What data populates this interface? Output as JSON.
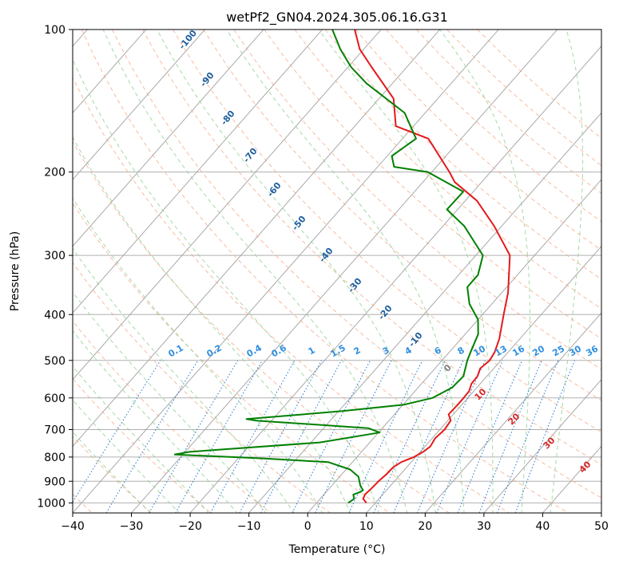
{
  "chart_data": {
    "type": "line",
    "title": "wetPf2_GN04.2024.305.06.16.G31",
    "xlabel": "Temperature (°C)",
    "ylabel": "Pressure (hPa)",
    "xlim": [
      -40,
      50
    ],
    "ylim": [
      1050,
      100
    ],
    "y_scale": "log",
    "skew": "skew-T",
    "grid": true,
    "x_ticks": [
      -40,
      -30,
      -20,
      -10,
      0,
      10,
      20,
      30,
      40,
      50
    ],
    "y_ticks": [
      1000,
      900,
      800,
      700,
      600,
      500,
      400,
      300,
      200,
      100
    ],
    "series": [
      {
        "color": "#e41a1c",
        "points": [
          {
            "t": 8.5,
            "p": 1000
          },
          {
            "t": 7.3,
            "p": 980
          },
          {
            "t": 7.0,
            "p": 960
          },
          {
            "t": 7.2,
            "p": 930
          },
          {
            "t": 7.3,
            "p": 900
          },
          {
            "t": 7.6,
            "p": 870
          },
          {
            "t": 7.7,
            "p": 840
          },
          {
            "t": 8.3,
            "p": 820
          },
          {
            "t": 9.7,
            "p": 800
          },
          {
            "t": 10.5,
            "p": 780
          },
          {
            "t": 10.9,
            "p": 760
          },
          {
            "t": 10.5,
            "p": 730
          },
          {
            "t": 10.8,
            "p": 700
          },
          {
            "t": 10.5,
            "p": 670
          },
          {
            "t": 9.2,
            "p": 650
          },
          {
            "t": 9.3,
            "p": 620
          },
          {
            "t": 9.3,
            "p": 600
          },
          {
            "t": 9.2,
            "p": 580
          },
          {
            "t": 8.5,
            "p": 560
          },
          {
            "t": 8.4,
            "p": 540
          },
          {
            "t": 7.7,
            "p": 520
          },
          {
            "t": 8.1,
            "p": 500
          },
          {
            "t": 7.7,
            "p": 480
          },
          {
            "t": 6.5,
            "p": 450
          },
          {
            "t": 3.6,
            "p": 400
          },
          {
            "t": 1.1,
            "p": 360
          },
          {
            "t": -4.2,
            "p": 300
          },
          {
            "t": -11.3,
            "p": 260
          },
          {
            "t": -18.0,
            "p": 230
          },
          {
            "t": -24.6,
            "p": 210
          },
          {
            "t": -27.0,
            "p": 200
          },
          {
            "t": -35.6,
            "p": 170
          },
          {
            "t": -43.0,
            "p": 160
          },
          {
            "t": -47.5,
            "p": 140
          },
          {
            "t": -56.0,
            "p": 120
          },
          {
            "t": -60.7,
            "p": 110
          },
          {
            "t": -64.5,
            "p": 100
          }
        ]
      },
      {
        "color": "#008000",
        "points": [
          {
            "t": 5.4,
            "p": 1000
          },
          {
            "t": 5.6,
            "p": 990
          },
          {
            "t": 5.8,
            "p": 980
          },
          {
            "t": 5.0,
            "p": 960
          },
          {
            "t": 5.7,
            "p": 950
          },
          {
            "t": 6.0,
            "p": 940
          },
          {
            "t": 4.9,
            "p": 920
          },
          {
            "t": 3.2,
            "p": 880
          },
          {
            "t": 0.7,
            "p": 850
          },
          {
            "t": -4.1,
            "p": 820
          },
          {
            "t": -16.2,
            "p": 805
          },
          {
            "t": -31.4,
            "p": 790
          },
          {
            "t": -29.3,
            "p": 780
          },
          {
            "t": -8.5,
            "p": 745
          },
          {
            "t": 0.2,
            "p": 710
          },
          {
            "t": -2.4,
            "p": 695
          },
          {
            "t": -22.7,
            "p": 670
          },
          {
            "t": -24.5,
            "p": 665
          },
          {
            "t": -9.5,
            "p": 640
          },
          {
            "t": 0.2,
            "p": 620
          },
          {
            "t": 4.0,
            "p": 600
          },
          {
            "t": 5.8,
            "p": 570
          },
          {
            "t": 6.0,
            "p": 540
          },
          {
            "t": 4.3,
            "p": 500
          },
          {
            "t": 3.6,
            "p": 480
          },
          {
            "t": 2.2,
            "p": 440
          },
          {
            "t": 0.0,
            "p": 410
          },
          {
            "t": -3.8,
            "p": 380
          },
          {
            "t": -6.7,
            "p": 350
          },
          {
            "t": -6.7,
            "p": 330
          },
          {
            "t": -8.8,
            "p": 300
          },
          {
            "t": -16.4,
            "p": 260
          },
          {
            "t": -21.8,
            "p": 240
          },
          {
            "t": -21.7,
            "p": 220
          },
          {
            "t": -30.7,
            "p": 200
          },
          {
            "t": -37.2,
            "p": 195
          },
          {
            "t": -39.2,
            "p": 185
          },
          {
            "t": -37.7,
            "p": 170
          },
          {
            "t": -43.5,
            "p": 150
          },
          {
            "t": -54.4,
            "p": 130
          },
          {
            "t": -59.5,
            "p": 120
          },
          {
            "t": -64.0,
            "p": 110
          },
          {
            "t": -68.3,
            "p": 100
          }
        ]
      }
    ],
    "dry_adiabat_labels": [
      "-100",
      "-90",
      "-80",
      "-70",
      "-60",
      "-50",
      "-40",
      "-30",
      "-20",
      "-10"
    ],
    "dry_adiabat_thetas_c": [
      -100,
      -90,
      -80,
      -70,
      -60,
      -50,
      -40,
      -30,
      -20,
      -10
    ],
    "mixing_ratio_labels": [
      "0.1",
      "0.2",
      "0.4",
      "0.6",
      "1",
      "1.5",
      "2",
      "3",
      "4",
      "6",
      "8",
      "10",
      "13",
      "16",
      "20",
      "25",
      "30",
      "36"
    ],
    "mixing_ratio_values": [
      0.1,
      0.2,
      0.4,
      0.6,
      1,
      1.5,
      2,
      3,
      4,
      6,
      8,
      10,
      13,
      16,
      20,
      25,
      30,
      36
    ],
    "moist_adiabat_labels": [
      "0",
      "10",
      "20",
      "30",
      "40"
    ],
    "moist_adiabat_values": [
      0,
      10,
      20,
      30,
      40
    ],
    "colors": {
      "temperature": "#e41a1c",
      "dewpoint": "#008000",
      "isotherm": "#a0a0a0",
      "dry_adiabat": "#f4a582",
      "moist_adiabat": "#8fcf8f",
      "mixing_ratio": "#1f78d4",
      "dry_label": "#1f5f9f",
      "mix_label": "#2f8fe0",
      "moist_label_zero": "#808080",
      "moist_label": "#d62728"
    }
  }
}
